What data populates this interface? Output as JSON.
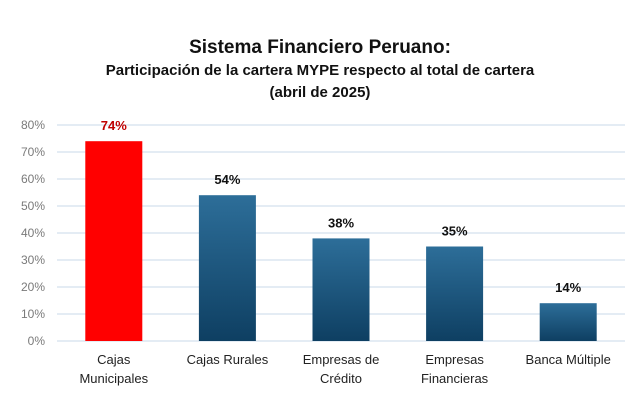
{
  "chart_data": {
    "type": "bar",
    "title": "Sistema Financiero Peruano:",
    "subtitle": "Participación de la cartera MYPE respecto al total de cartera",
    "subtitle2": "(abril de 2025)",
    "categories": [
      [
        "Cajas",
        "Municipales"
      ],
      [
        "Cajas Rurales"
      ],
      [
        "Empresas de",
        "Crédito"
      ],
      [
        "Empresas",
        "Financieras"
      ],
      [
        "Banca Múltiple"
      ]
    ],
    "values": [
      74,
      54,
      38,
      35,
      14
    ],
    "data_labels": [
      "74%",
      "54%",
      "38%",
      "35%",
      "14%"
    ],
    "y_ticks": [
      "0%",
      "10%",
      "20%",
      "30%",
      "40%",
      "50%",
      "60%",
      "70%",
      "80%"
    ],
    "ylim": [
      0,
      80
    ],
    "grid": true,
    "colors": {
      "highlight": "#ff0000",
      "highlight_label": "#c00000",
      "bar_top": "#2d6e99",
      "bar_bottom": "#0e3f62",
      "grid": "#c9d9ea",
      "tick_text": "#7a7a7a"
    }
  }
}
